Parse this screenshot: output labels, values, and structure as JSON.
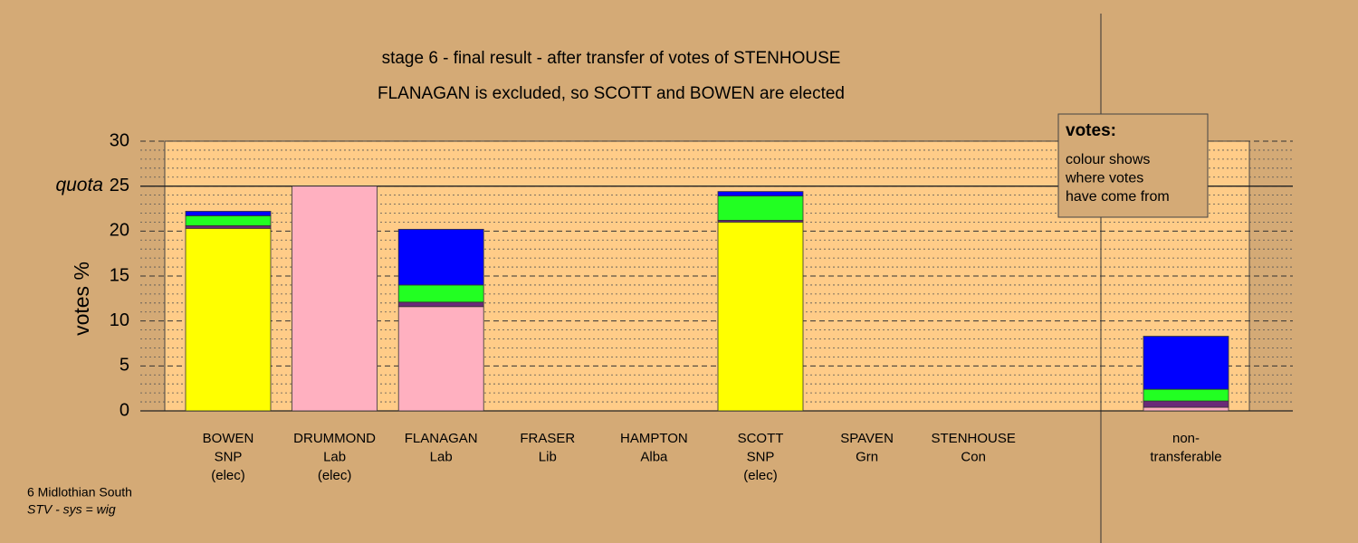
{
  "chart_data": {
    "type": "bar",
    "stacked": true,
    "title": "stage 6 - final result - after transfer of votes of STENHOUSE",
    "subtitle": "FLANAGAN is excluded, so SCOTT and BOWEN are elected",
    "y_label": "votes %",
    "quota_label": "quota",
    "quota": 25,
    "categories": [
      [
        "BOWEN",
        "SNP",
        "(elec)"
      ],
      [
        "DRUMMOND",
        "Lab",
        "(elec)"
      ],
      [
        "FLANAGAN",
        "Lab"
      ],
      [
        "FRASER",
        "Lib"
      ],
      [
        "HAMPTON",
        "Alba"
      ],
      [
        "SCOTT",
        "SNP",
        "(elec)"
      ],
      [
        "SPAVEN",
        "Grn"
      ],
      [
        "STENHOUSE",
        "Con"
      ],
      [
        "non-",
        "transferable"
      ]
    ],
    "series": [
      {
        "color": "#ffff00",
        "values": [
          20.3,
          0,
          0,
          0,
          0,
          21.0,
          0,
          0,
          0
        ]
      },
      {
        "color": "#ffb0c0",
        "values": [
          0,
          25,
          11.6,
          0,
          0,
          0,
          0,
          0,
          0.4
        ]
      },
      {
        "color": "#6a2a78",
        "values": [
          0.3,
          0,
          0.5,
          0,
          0,
          0.2,
          0,
          0,
          0.7
        ]
      },
      {
        "color": "#22ff22",
        "values": [
          1.1,
          0,
          1.9,
          0,
          0,
          2.7,
          0,
          0,
          1.3
        ]
      },
      {
        "color": "#0000ff",
        "values": [
          0.5,
          0,
          6.2,
          0,
          0,
          0.5,
          0,
          0,
          5.9
        ]
      }
    ],
    "ylim": [
      0,
      30
    ],
    "yticks": [
      0,
      5,
      10,
      15,
      20,
      25,
      30
    ],
    "minor_yticks": [
      1,
      2,
      3,
      4,
      6,
      7,
      8,
      9,
      11,
      12,
      13,
      14,
      16,
      17,
      18,
      19,
      21,
      22,
      23,
      24,
      26,
      27,
      28,
      29
    ],
    "grid": true,
    "legend": {
      "title": "votes:",
      "lines": [
        "colour shows",
        "where votes",
        "have come from"
      ]
    },
    "footer": [
      "6 Midlothian South",
      "STV - sys = wig"
    ]
  }
}
